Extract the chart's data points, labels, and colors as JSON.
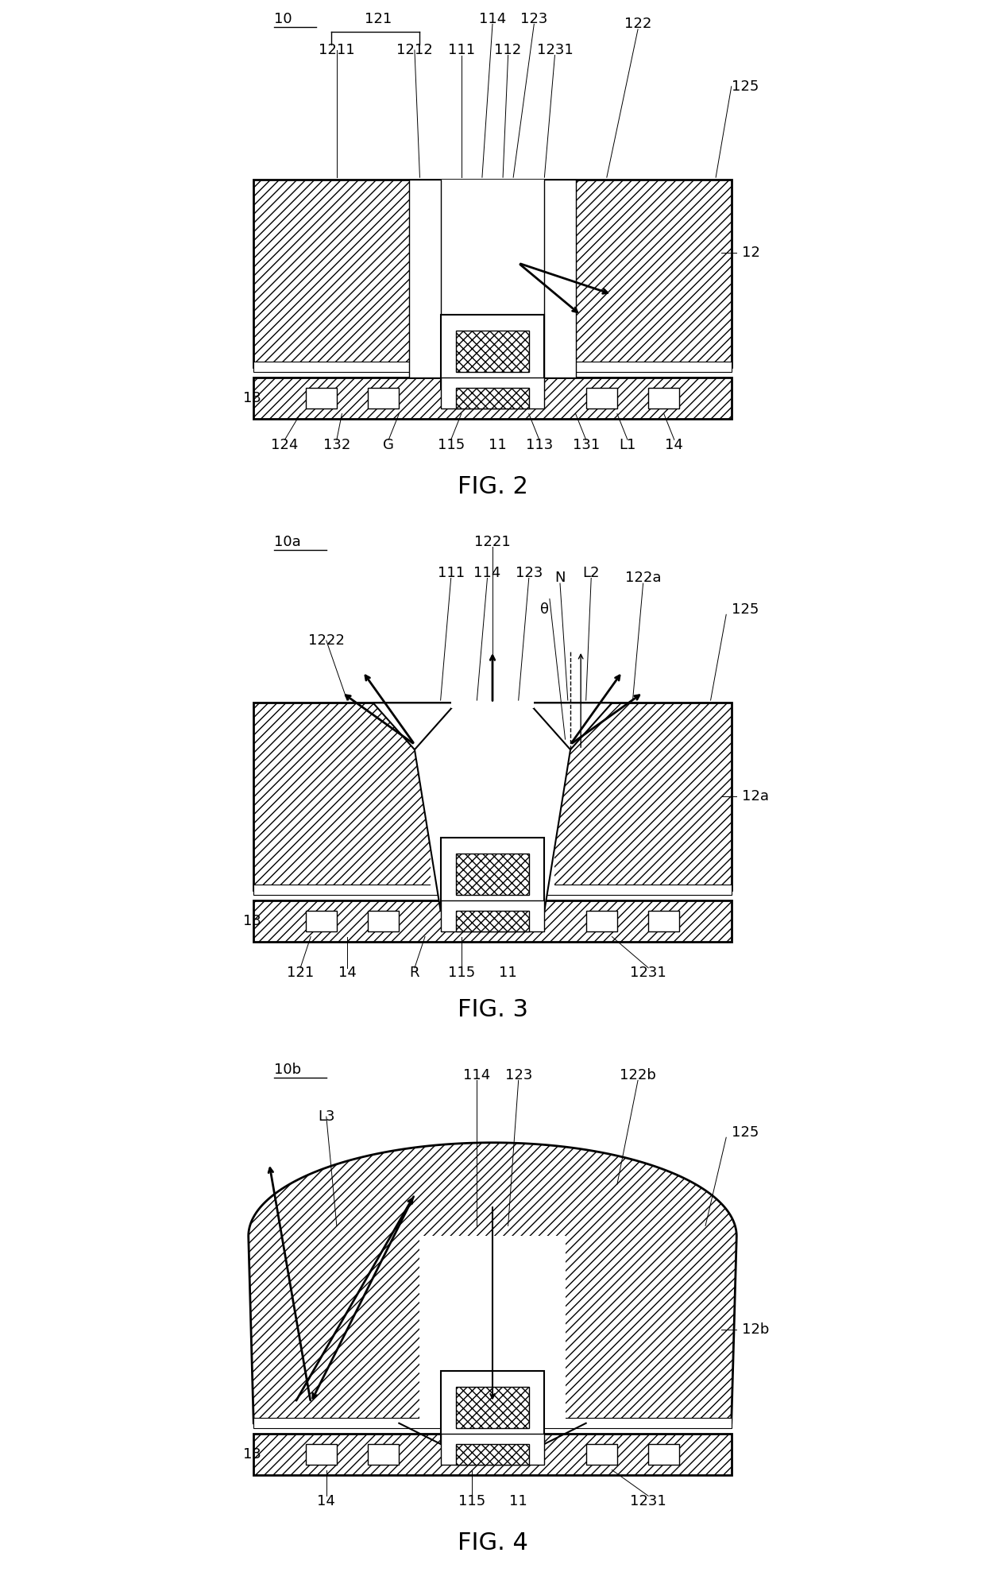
{
  "fig2_title": "FIG. 2",
  "fig3_title": "FIG. 3",
  "fig4_title": "FIG. 4",
  "bg_color": "#ffffff",
  "line_color": "#000000",
  "hatch_pattern": "///",
  "cross_hatch": "xxx",
  "label_fontsize": 13,
  "title_fontsize": 22,
  "fig_width": 12.4,
  "fig_height": 19.78
}
